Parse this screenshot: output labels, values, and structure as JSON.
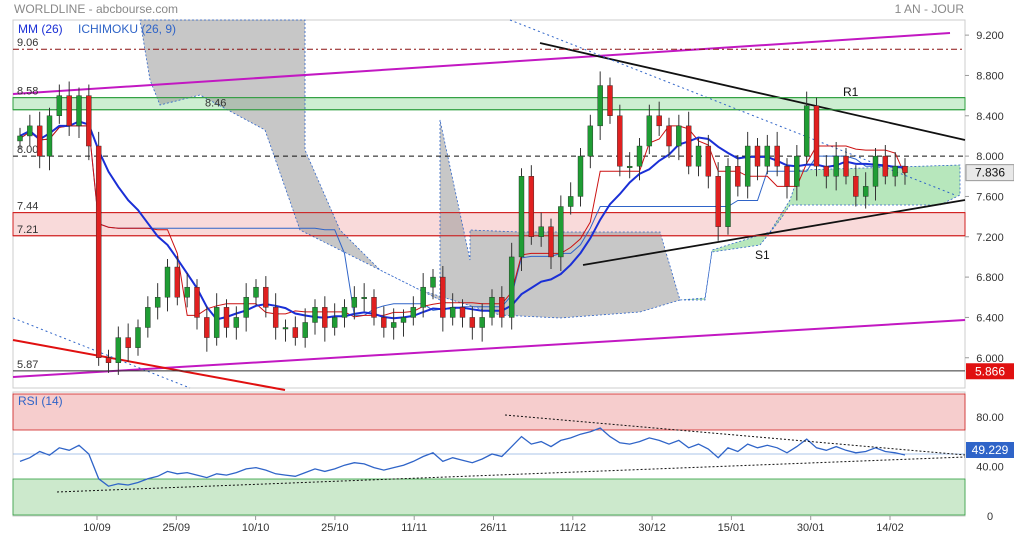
{
  "header": {
    "source": "WORLDLINE - abcbourse.com",
    "period": "1 AN - JOUR"
  },
  "legend": {
    "ma": "MM (26)",
    "ichimoku": "ICHIMOKU (26, 9)",
    "rsi": "RSI (14)"
  },
  "colors": {
    "bull": "#1f9d34",
    "bear": "#e02020",
    "ma": "#1a2fd6",
    "kijun": "#2f64c8",
    "tenkan": "#cc1111",
    "channel": "#c218c2",
    "cloud_grey": "#999999",
    "cloud_green": "#6fcf7a",
    "rsi_line": "#2f64c8",
    "support": "#e01010"
  },
  "chart_data": [
    {
      "type": "candlestick",
      "ylim": [
        5.7,
        9.35
      ],
      "yticks": [
        "9.200",
        "8.800",
        "8.400",
        "8.000",
        "7.600",
        "7.200",
        "6.800",
        "6.400",
        "6.000"
      ],
      "xticks": [
        "10/09",
        "25/09",
        "10/10",
        "25/10",
        "11/11",
        "26/11",
        "11/12",
        "30/12",
        "15/01",
        "30/01",
        "14/02"
      ],
      "levels": [
        {
          "label": "9.06",
          "value": 9.06,
          "style": "dashdot-red"
        },
        {
          "label": "8.58",
          "value": 8.58,
          "style": "zone-green-top"
        },
        {
          "label": "8.46",
          "value": 8.46,
          "style": "zone-green-bottom"
        },
        {
          "label": "8.00",
          "value": 8.0,
          "style": "dashed-black"
        },
        {
          "label": "7.44",
          "value": 7.44,
          "style": "zone-red-top"
        },
        {
          "label": "7.21",
          "value": 7.21,
          "style": "zone-red-bottom"
        },
        {
          "label": "5.87",
          "value": 5.87,
          "style": "solid-black"
        }
      ],
      "last_price": "7.836",
      "low_badge": "5.866",
      "annotations": [
        "R1",
        "S1"
      ],
      "closes": [
        8.2,
        8.3,
        8.0,
        8.4,
        8.6,
        8.3,
        8.6,
        8.1,
        6.0,
        5.95,
        6.2,
        6.1,
        6.3,
        6.5,
        6.6,
        6.9,
        6.6,
        6.7,
        6.4,
        6.2,
        6.5,
        6.3,
        6.4,
        6.6,
        6.7,
        6.5,
        6.3,
        6.3,
        6.2,
        6.35,
        6.5,
        6.3,
        6.4,
        6.5,
        6.6,
        6.6,
        6.4,
        6.3,
        6.35,
        6.4,
        6.5,
        6.7,
        6.8,
        6.4,
        6.5,
        6.4,
        6.3,
        6.4,
        6.6,
        6.4,
        7.0,
        7.8,
        7.2,
        7.3,
        7.0,
        7.5,
        7.6,
        8.0,
        8.3,
        8.7,
        8.4,
        7.9,
        7.9,
        8.1,
        8.4,
        8.3,
        8.1,
        8.3,
        7.9,
        8.1,
        7.8,
        7.3,
        7.9,
        7.7,
        8.1,
        7.9,
        8.1,
        7.9,
        7.7,
        8.0,
        8.5,
        7.9,
        7.8,
        8.0,
        7.8,
        7.6,
        7.7,
        8.0,
        7.8,
        7.9,
        7.836
      ],
      "rsi": {
        "ylim": [
          0,
          100
        ],
        "yticks": [
          "80.00",
          "40.00",
          "0"
        ],
        "last_value": "49.229",
        "values": [
          44,
          47,
          52,
          49,
          55,
          53,
          57,
          50,
          30,
          24,
          26,
          25,
          27,
          30,
          32,
          36,
          34,
          35,
          33,
          31,
          34,
          33,
          35,
          38,
          39,
          37,
          34,
          33,
          32,
          35,
          38,
          36,
          38,
          41,
          43,
          42,
          39,
          37,
          39,
          41,
          44,
          48,
          51,
          44,
          47,
          45,
          43,
          46,
          50,
          48,
          56,
          64,
          58,
          60,
          56,
          61,
          63,
          66,
          68,
          71,
          64,
          59,
          58,
          60,
          63,
          61,
          58,
          61,
          55,
          58,
          54,
          47,
          55,
          52,
          58,
          55,
          57,
          55,
          51,
          56,
          62,
          55,
          53,
          56,
          53,
          51,
          52,
          55,
          52,
          51,
          49.229
        ]
      }
    }
  ]
}
